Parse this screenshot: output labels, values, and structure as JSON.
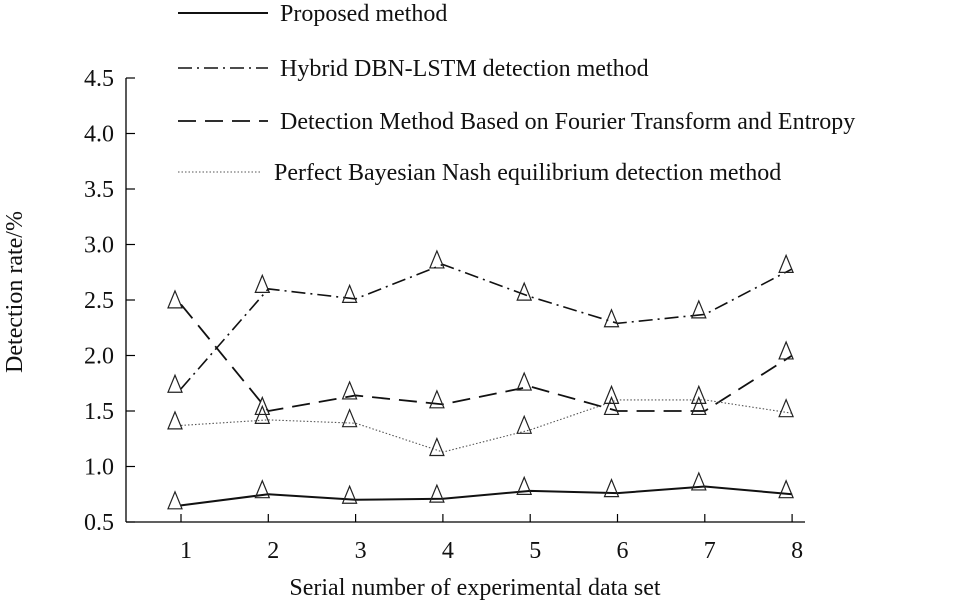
{
  "chart_data": {
    "type": "line",
    "title": "",
    "xlabel": "Serial number of experimental data set",
    "ylabel": "Detection rate/%",
    "x": [
      1,
      2,
      3,
      4,
      5,
      6,
      7,
      8
    ],
    "x_tick_labels": [
      "1",
      "2",
      "3",
      "4",
      "5",
      "6",
      "7",
      "8"
    ],
    "ylim": [
      0.5,
      4.5
    ],
    "y_ticks": [
      0.5,
      1.0,
      1.5,
      2.0,
      2.5,
      3.0,
      3.5,
      4.0,
      4.5
    ],
    "y_tick_labels": [
      "0.5",
      "1.0",
      "1.5",
      "2.0",
      "2.5",
      "3.0",
      "3.5",
      "4.0",
      "4.5"
    ],
    "grid": false,
    "legend_position": "top",
    "marker": "triangle",
    "series": [
      {
        "name": "Proposed method",
        "style": "solid",
        "values": [
          0.65,
          0.75,
          0.7,
          0.71,
          0.78,
          0.76,
          0.82,
          0.75
        ]
      },
      {
        "name": "Hybrid DBN-LSTM detection method",
        "style": "dashdot",
        "values": [
          1.7,
          2.6,
          2.51,
          2.82,
          2.53,
          2.29,
          2.37,
          2.78
        ]
      },
      {
        "name": "Detection Method Based on Fourier Transform and Entropy",
        "style": "dashed",
        "values": [
          2.46,
          1.5,
          1.64,
          1.56,
          1.72,
          1.5,
          1.5,
          2.0
        ]
      },
      {
        "name": "Perfect Bayesian Nash equilibrium detection method",
        "style": "dotted",
        "values": [
          1.37,
          1.42,
          1.39,
          1.13,
          1.33,
          1.6,
          1.6,
          1.48
        ]
      }
    ]
  }
}
